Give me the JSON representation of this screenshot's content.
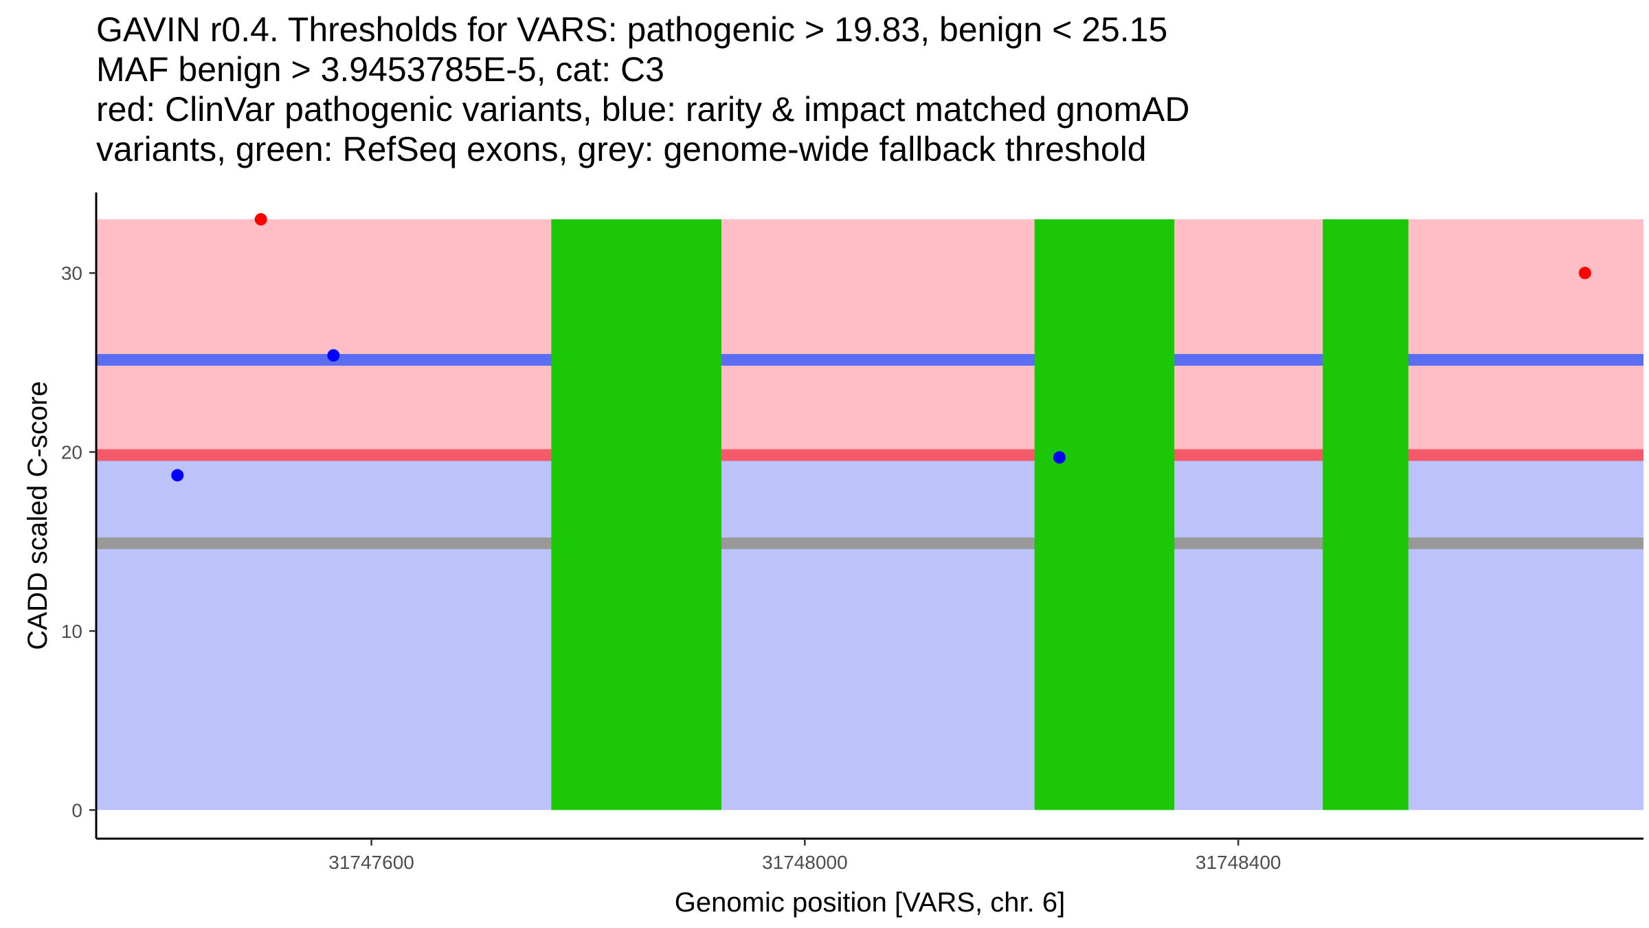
{
  "chart_data": {
    "type": "scatter",
    "title_lines": [
      "GAVIN r0.4. Thresholds for VARS: pathogenic > 19.83, benign < 25.15",
      "MAF benign > 3.9453785E-5, cat: C3",
      "red: ClinVar pathogenic variants, blue: rarity & impact matched gnomAD",
      "variants, green: RefSeq exons, grey: genome-wide fallback threshold"
    ],
    "xlabel": "Genomic position [VARS, chr. 6]",
    "ylabel": "CADD scaled C-score",
    "xlim": [
      31747346,
      31748774
    ],
    "ylim": [
      -1.6,
      34.5
    ],
    "xticks": [
      31747600,
      31748000,
      31748400
    ],
    "yticks": [
      0,
      10,
      20,
      30
    ],
    "grid": false,
    "region_xrange": [
      31747346,
      31748774
    ],
    "regions": [
      {
        "name": "pathogenic-region",
        "ymin": 19.83,
        "ymax": 33,
        "color": "#ffbec5"
      },
      {
        "name": "benign-region",
        "ymin": 0,
        "ymax": 19.83,
        "color": "#bcc3fb"
      }
    ],
    "threshold_lines": [
      {
        "name": "benign-threshold",
        "y": 25.15,
        "color": "#5a6ef5"
      },
      {
        "name": "pathogenic-threshold",
        "y": 19.83,
        "color": "#f45a6a"
      },
      {
        "name": "fallback-threshold",
        "y": 14.9,
        "color": "#999999"
      }
    ],
    "exons": [
      {
        "start": 31747766,
        "end": 31747923
      },
      {
        "start": 31748212,
        "end": 31748341
      },
      {
        "start": 31748478,
        "end": 31748557
      }
    ],
    "exon_color": "#1cc805",
    "exon_ymax": 33,
    "series": [
      {
        "name": "ClinVar pathogenic variants",
        "color": "#ff0000",
        "points": [
          {
            "x": 31747498,
            "y": 33.0
          },
          {
            "x": 31748720,
            "y": 30.0
          }
        ]
      },
      {
        "name": "gnomAD matched variants",
        "color": "#0000ff",
        "points": [
          {
            "x": 31747421,
            "y": 18.7
          },
          {
            "x": 31747565,
            "y": 25.4
          },
          {
            "x": 31748235,
            "y": 19.7
          }
        ]
      }
    ]
  }
}
